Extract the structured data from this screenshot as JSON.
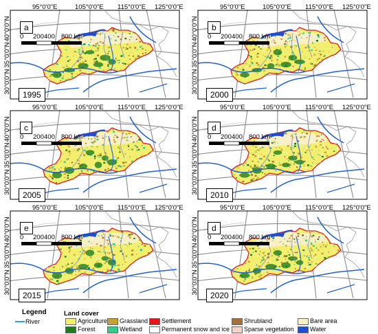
{
  "panels": [
    {
      "letter": "a",
      "year": "1995"
    },
    {
      "letter": "b",
      "year": "2000"
    },
    {
      "letter": "c",
      "year": "2005"
    },
    {
      "letter": "d",
      "year": "2010"
    },
    {
      "letter": "e",
      "year": "2015"
    },
    {
      "letter": "d",
      "year": "2020"
    }
  ],
  "axes": {
    "lon_labels": [
      "95°0'0\"E",
      "105°0'0\"E",
      "115°0'0\"E",
      "125°0'0\"E"
    ],
    "lat_labels": [
      "40°0'0\"N",
      "35°0'0\"N",
      "30°0'0\"N"
    ]
  },
  "scale": {
    "l0": "0",
    "l1": "200",
    "l2": "400",
    "l3": "800 km"
  },
  "legend": {
    "title": "Legend",
    "river": "River",
    "landcover_title": "Land cover",
    "items": [
      {
        "label": "Agriculture",
        "color": "#f3ef6e"
      },
      {
        "label": "Forest",
        "color": "#1d7d1d"
      },
      {
        "label": "Grassland",
        "color": "#c8a032"
      },
      {
        "label": "Wetland",
        "color": "#2fcf8a"
      },
      {
        "label": "Settlement",
        "color": "#e8141c"
      },
      {
        "label": "Permanent snow and ice",
        "color": "#ffffff"
      },
      {
        "label": "Shrubland",
        "color": "#a6703a"
      },
      {
        "label": "Sparse vegetation",
        "color": "#f7d2c9"
      },
      {
        "label": "Bare area",
        "color": "#faf0c8"
      },
      {
        "label": "Water",
        "color": "#1f4fd0"
      }
    ],
    "river_color": "#2aa0d8"
  }
}
